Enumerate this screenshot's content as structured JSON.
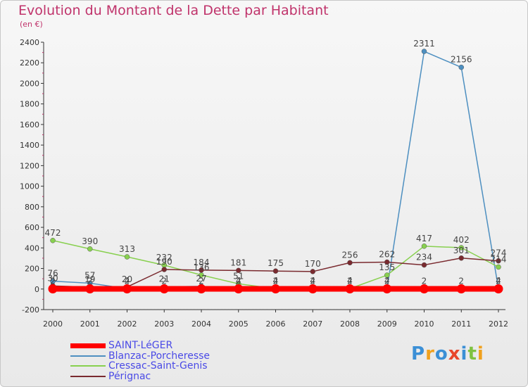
{
  "chart_data": {
    "type": "line",
    "title": "Evolution du Montant de la Dette par Habitant",
    "subtitle": "(en €)",
    "x": [
      "2000",
      "2001",
      "2002",
      "2003",
      "2004",
      "2005",
      "2006",
      "2007",
      "2008",
      "2009",
      "2010",
      "2011",
      "2012"
    ],
    "ylim": [
      -200,
      2400
    ],
    "yticks": [
      -200,
      0,
      200,
      400,
      600,
      800,
      1000,
      1200,
      1400,
      1600,
      1800,
      2000,
      2200,
      2400
    ],
    "grid": false,
    "legend_position": "bottom-left",
    "series": [
      {
        "name": "SAINT-LéGER",
        "color": "#ff0000",
        "values": [
          2,
          2,
          2,
          2,
          2,
          2,
          2,
          2,
          2,
          2,
          2,
          2,
          2
        ]
      },
      {
        "name": "Blanzac-Porcheresse",
        "color": "#4d8fc0",
        "values": [
          76,
          57,
          4,
          21,
          27,
          4,
          4,
          4,
          4,
          4,
          2311,
          2156,
          4
        ]
      },
      {
        "name": "Cressac-Saint-Genis",
        "color": "#88d04f",
        "values": [
          472,
          390,
          313,
          232,
          136,
          51,
          4,
          4,
          4,
          135,
          417,
          402,
          214
        ]
      },
      {
        "name": "Pérignac",
        "color": "#7a2a2f",
        "values": [
          30,
          19,
          20,
          190,
          184,
          181,
          175,
          170,
          256,
          262,
          234,
          301,
          274
        ]
      }
    ]
  },
  "logo": {
    "text": "Proxiti",
    "colors": [
      "#3b8fd6",
      "#f0a11e",
      "#3b8fd6",
      "#e8452b",
      "#3b8fd6",
      "#7fc241",
      "#f0a11e"
    ]
  }
}
